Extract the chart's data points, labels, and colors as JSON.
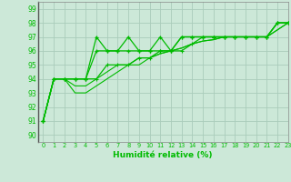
{
  "xlabel": "Humidité relative (%)",
  "bg_color": "#cce8d8",
  "grid_color": "#aaccbb",
  "line_color": "#00bb00",
  "ylim": [
    90,
    99
  ],
  "xlim": [
    -0.5,
    23
  ],
  "yticks": [
    90,
    91,
    92,
    93,
    94,
    95,
    96,
    97,
    98,
    99
  ],
  "xticks": [
    0,
    1,
    2,
    3,
    4,
    5,
    6,
    7,
    8,
    9,
    10,
    11,
    12,
    13,
    14,
    15,
    16,
    17,
    18,
    19,
    20,
    21,
    22,
    23
  ],
  "s1_x": [
    0,
    1,
    2,
    3,
    4,
    5,
    6,
    7,
    8,
    9,
    10,
    11,
    12,
    13,
    14,
    15,
    16,
    17,
    18,
    19,
    20,
    21,
    22,
    23
  ],
  "s1_y": [
    91,
    94,
    94,
    94,
    94,
    97,
    96,
    96,
    97,
    96,
    96,
    97,
    96,
    97,
    97,
    97,
    97,
    97,
    97,
    97,
    97,
    97,
    98,
    98
  ],
  "s2_x": [
    0,
    1,
    2,
    3,
    4,
    5,
    6,
    7,
    8,
    9,
    10,
    11,
    12,
    13,
    14,
    15,
    16,
    17,
    18,
    19,
    20,
    21,
    22,
    23
  ],
  "s2_y": [
    91,
    94,
    94,
    94,
    94,
    96,
    96,
    96,
    96,
    96,
    96,
    96,
    96,
    97,
    97,
    97,
    97,
    97,
    97,
    97,
    97,
    97,
    98,
    98
  ],
  "s3_x": [
    0,
    1,
    2,
    3,
    4,
    5,
    6,
    7,
    8,
    9,
    10,
    11,
    12,
    13,
    14,
    15,
    16,
    17,
    18,
    19,
    20,
    21,
    22,
    23
  ],
  "s3_y": [
    91,
    94,
    94,
    94,
    94,
    94,
    95,
    95,
    95,
    95.5,
    95.5,
    96,
    96,
    96,
    96.5,
    97,
    97,
    97,
    97,
    97,
    97,
    97,
    98,
    98
  ],
  "s4_x": [
    0,
    1,
    2,
    3,
    4,
    5,
    6,
    7,
    8,
    9,
    10,
    11,
    12,
    13,
    14,
    15,
    16,
    17,
    18,
    19,
    20,
    21,
    22,
    23
  ],
  "s4_y": [
    91,
    94,
    94,
    93.5,
    93.5,
    94,
    94.5,
    95,
    95,
    95.5,
    95.5,
    95.8,
    96,
    96.2,
    96.5,
    96.7,
    96.8,
    97,
    97,
    97,
    97,
    97,
    97.5,
    98
  ],
  "s5_x": [
    0,
    1,
    2,
    3,
    4,
    5,
    6,
    7,
    8,
    9,
    10,
    11,
    12,
    13,
    14,
    15,
    16,
    17,
    18,
    19,
    20,
    21,
    22,
    23
  ],
  "s5_y": [
    91,
    94,
    94,
    93,
    93,
    93.5,
    94,
    94.5,
    95,
    95,
    95.5,
    95.8,
    96,
    96.2,
    96.5,
    96.7,
    96.8,
    97,
    97,
    97,
    97,
    97,
    97.5,
    98
  ]
}
